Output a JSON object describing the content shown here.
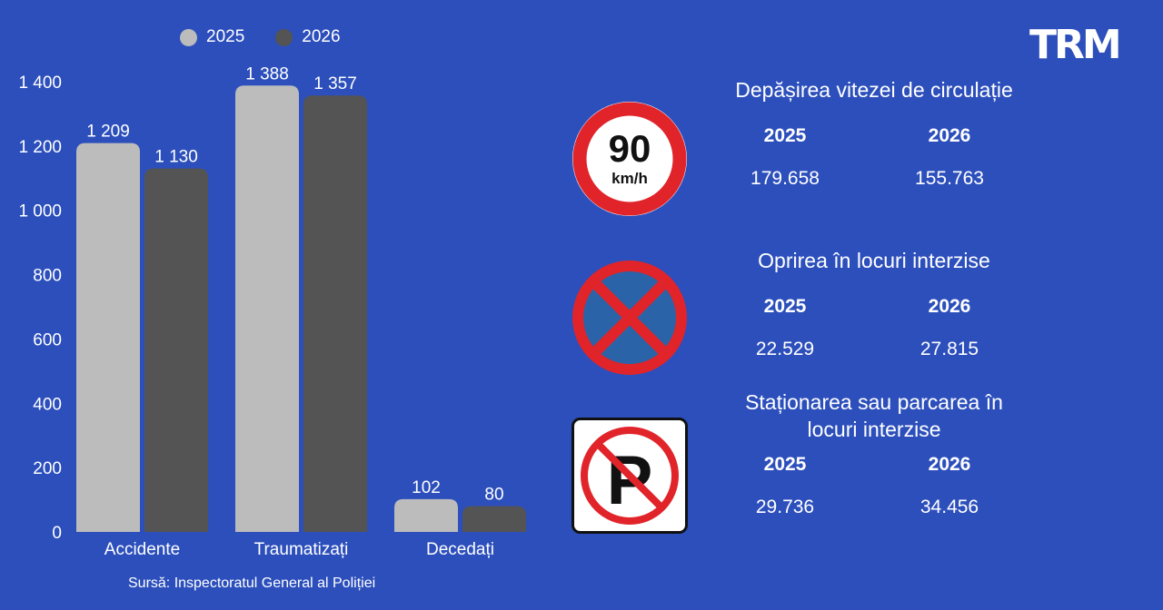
{
  "brand": {
    "logo_text": "TRM"
  },
  "chart_data": {
    "type": "bar",
    "categories": [
      "Accidente",
      "Traumatizați",
      "Decedați"
    ],
    "series": [
      {
        "name": "2025",
        "color": "#bcbcbc",
        "values": [
          1209,
          1388,
          102
        ],
        "labels": [
          "1 209",
          "1 388",
          "102"
        ]
      },
      {
        "name": "2026",
        "color": "#545454",
        "values": [
          1130,
          1357,
          80
        ],
        "labels": [
          "1 130",
          "1 357",
          "80"
        ]
      }
    ],
    "ylim": [
      0,
      1400
    ],
    "yticks": [
      0,
      200,
      400,
      600,
      800,
      1000,
      1200,
      1400
    ],
    "ytick_labels": [
      "0",
      "200",
      "400",
      "600",
      "800",
      "1 000",
      "1 200",
      "1 400"
    ],
    "legend_position": "top",
    "grid": false
  },
  "source": "Sursă: Inspectoratul General al Poliției",
  "stats": [
    {
      "title": "Depășirea vitezei de circulație",
      "year1": "2025",
      "year2": "2026",
      "value1": "179.658",
      "value2": "155.763",
      "icon": "speed-limit-90-icon"
    },
    {
      "title": "Oprirea în locuri interzise",
      "year1": "2025",
      "year2": "2026",
      "value1": "22.529",
      "value2": "27.815",
      "icon": "no-stopping-icon"
    },
    {
      "title_line1": "Staționarea sau parcarea în",
      "title_line2": "locuri interzise",
      "year1": "2025",
      "year2": "2026",
      "value1": "29.736",
      "value2": "34.456",
      "icon": "no-parking-icon"
    }
  ],
  "sign": {
    "speed_number": "90",
    "speed_unit": "km/h",
    "parking_letter": "P"
  }
}
